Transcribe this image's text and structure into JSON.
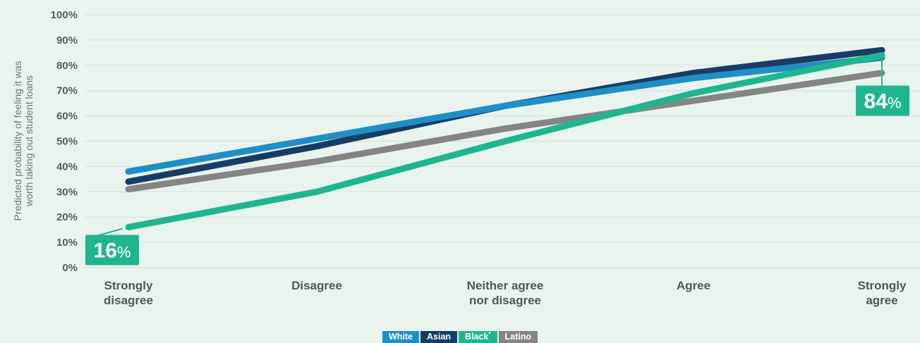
{
  "chart_data": {
    "type": "line",
    "ylabel": [
      "Predicted probability of feeling it was",
      "worth taking out student loans"
    ],
    "xlabel": "",
    "ylim": [
      0,
      100
    ],
    "y_ticks": [
      "0%",
      "10%",
      "20%",
      "30%",
      "40%",
      "50%",
      "60%",
      "70%",
      "80%",
      "90%",
      "100%"
    ],
    "categories": [
      [
        "Strongly",
        "disagree"
      ],
      [
        "Disagree"
      ],
      [
        "Neither agree",
        "nor disagree"
      ],
      [
        "Agree"
      ],
      [
        "Strongly",
        "agree"
      ]
    ],
    "series": [
      {
        "name": "Latino",
        "color": "#858585",
        "values": [
          31,
          42,
          55,
          66,
          77
        ]
      },
      {
        "name": "Asian",
        "color": "#173d66",
        "values": [
          34,
          48,
          64,
          77,
          86
        ]
      },
      {
        "name": "White",
        "color": "#1f8fc6",
        "values": [
          38,
          51,
          64,
          75,
          83
        ]
      },
      {
        "name": "Black",
        "color": "#1fb68f",
        "values": [
          16,
          30,
          50,
          69,
          84
        ]
      }
    ],
    "annotations": [
      {
        "series": "Black",
        "category_index": 0,
        "number": "16",
        "unit": "%"
      },
      {
        "series": "Black",
        "category_index": 4,
        "number": "84",
        "unit": "%"
      }
    ],
    "grid": true,
    "legend": {
      "placement": "bottom-center",
      "items": [
        {
          "label": "White",
          "color": "#1f8fc6",
          "marker": ""
        },
        {
          "label": "Asian",
          "color": "#173d66",
          "marker": ""
        },
        {
          "label": "Black",
          "color": "#1fb68f",
          "marker": "*"
        },
        {
          "label": "Latino",
          "color": "#858585",
          "marker": ""
        }
      ]
    }
  }
}
